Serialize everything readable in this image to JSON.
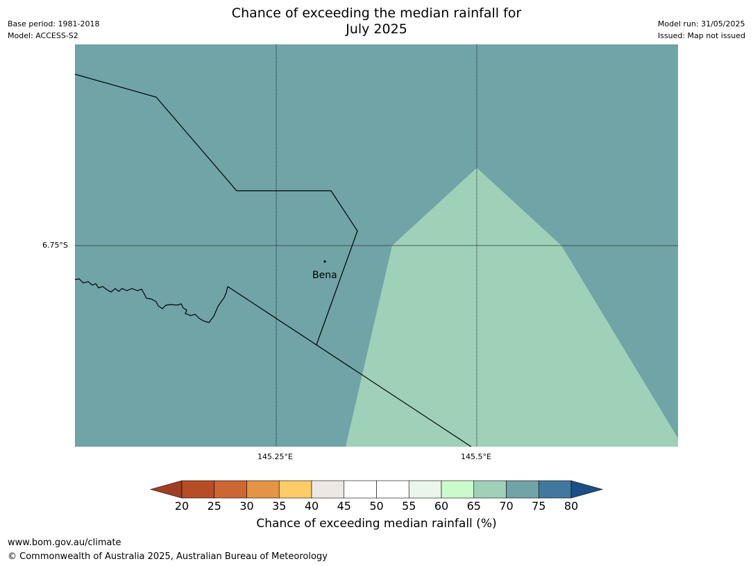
{
  "header": {
    "title_line1": "Chance of exceeding the median rainfall for",
    "title_line2": "July 2025",
    "base_period": "Base period: 1981-2018",
    "model": "Model: ACCESS-S2",
    "model_run": "Model run: 31/05/2025",
    "issued": "Issued: Map not issued"
  },
  "map": {
    "lat_label": "6.75°S",
    "lon_labels": [
      "145.25°E",
      "145.5°E"
    ],
    "place_label": "Bena",
    "background_class_color": "#70a4a7",
    "overlay_class_color": "#9ed1b8"
  },
  "colorbar": {
    "ticks": [
      "20",
      "25",
      "30",
      "35",
      "40",
      "45",
      "50",
      "55",
      "60",
      "65",
      "70",
      "75",
      "80"
    ],
    "colors": [
      "#a23d24",
      "#b54e26",
      "#cc6633",
      "#e39445",
      "#fdcb68",
      "#ede8e3",
      "#ffffff",
      "#ffffff",
      "#e9f6e9",
      "#cbfbcb",
      "#9ed1b8",
      "#70a4a7",
      "#41799e",
      "#1d4e86"
    ],
    "label": "Chance of exceeding median rainfall (%)"
  },
  "footer": {
    "url": "www.bom.gov.au/climate",
    "copyright": "© Commonwealth of Australia 2025, Australian Bureau of Meteorology"
  }
}
